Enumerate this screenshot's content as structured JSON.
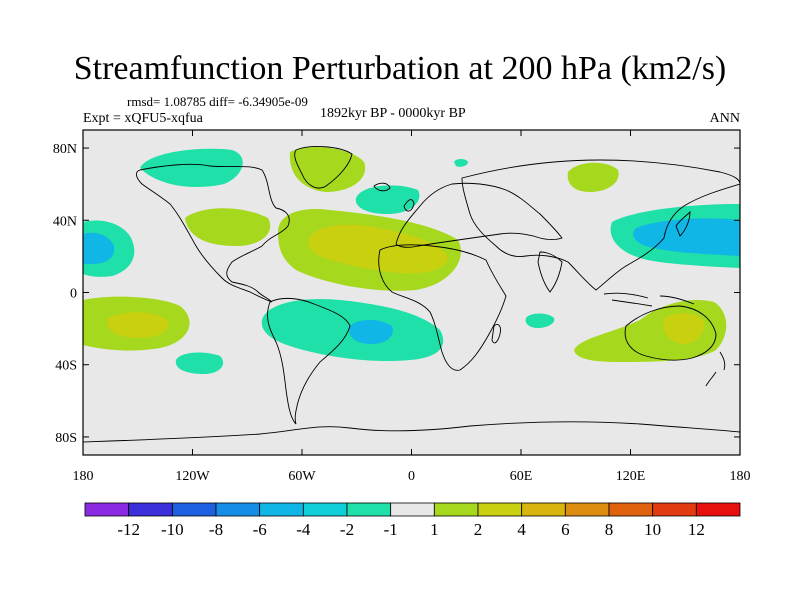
{
  "title": "Streamfunction Perturbation at 200 hPa (km2/s)",
  "stats": "rmsd= 1.08785 diff= -6.34905e-09",
  "experiment": "Expt = xQFU5-xqfua",
  "period": "1892kyr BP - 0000kyr BP",
  "season": "ANN",
  "lat_ticks": [
    "80N",
    "40N",
    "0",
    "40S",
    "80S"
  ],
  "lon_ticks": [
    "180",
    "120W",
    "60W",
    "0",
    "60E",
    "120E",
    "180"
  ],
  "colorbar": {
    "labels": [
      "-12",
      "-10",
      "-8",
      "-6",
      "-4",
      "-2",
      "-1",
      "1",
      "2",
      "4",
      "6",
      "8",
      "10",
      "12"
    ],
    "colors": [
      "#8a2be2",
      "#3a2fd8",
      "#1e5fe0",
      "#168ee6",
      "#10b6e6",
      "#0fd0d8",
      "#1ee0a8",
      "#e8e8e8",
      "#a6d81e",
      "#c8d010",
      "#d8b40e",
      "#dc8c10",
      "#e0620e",
      "#e23a10",
      "#e8100c"
    ]
  },
  "map": {
    "background": "#e8e8e8",
    "coast": "#000000"
  }
}
